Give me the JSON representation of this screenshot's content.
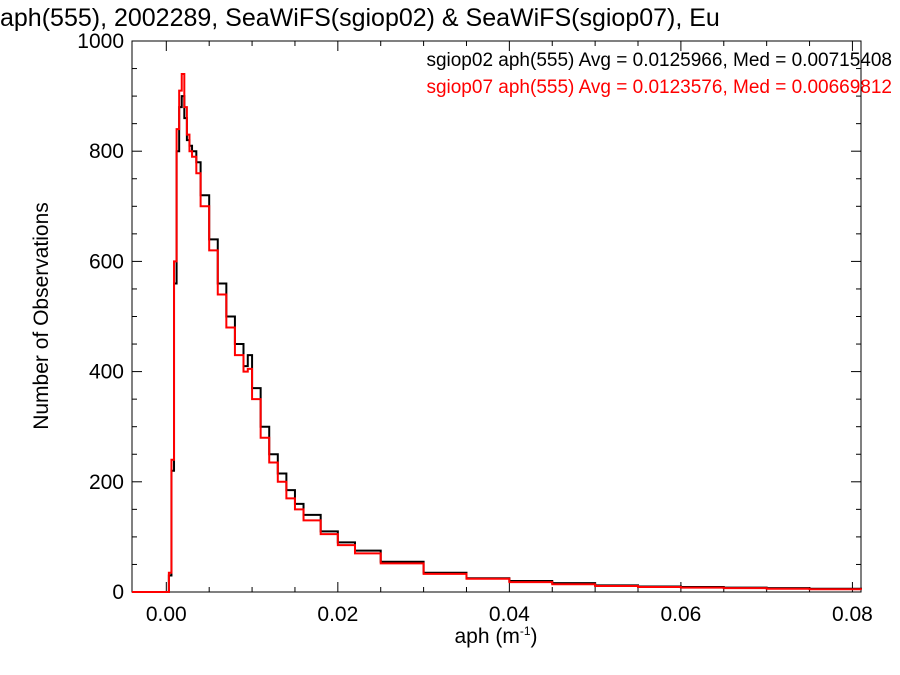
{
  "chart_data": {
    "type": "histogram",
    "title": "aph(555), 2002289, SeaWiFS(sgiop02) & SeaWiFS(sgiop07), Eu",
    "xlabel": "aph (m",
    "xlabel_exponent": "-1",
    "xlabel_close": ")",
    "ylabel": "Number of Observations",
    "xlim": [
      -0.004,
      0.081
    ],
    "ylim": [
      0,
      1000
    ],
    "x_ticks": [
      0.0,
      0.02,
      0.04,
      0.06,
      0.08
    ],
    "x_tick_labels": [
      "0.00",
      "0.02",
      "0.04",
      "0.06",
      "0.08"
    ],
    "y_ticks": [
      0,
      200,
      400,
      600,
      800,
      1000
    ],
    "y_tick_labels": [
      "0",
      "200",
      "400",
      "600",
      "800",
      "1000"
    ],
    "annotations": [
      {
        "text": "sgiop02 aph(555) Avg = 0.0125966, Med = 0.00715408",
        "color": "#000000"
      },
      {
        "text": "sgiop07 aph(555) Avg = 0.0123576, Med = 0.00669812",
        "color": "#ff0000"
      }
    ],
    "series": [
      {
        "name": "sgiop02",
        "color": "#000000",
        "x": [
          -0.004,
          0.0,
          0.0003,
          0.0006,
          0.0009,
          0.0012,
          0.0015,
          0.0018,
          0.0021,
          0.0024,
          0.0027,
          0.003,
          0.0035,
          0.004,
          0.005,
          0.006,
          0.007,
          0.008,
          0.009,
          0.0095,
          0.01,
          0.011,
          0.012,
          0.013,
          0.014,
          0.015,
          0.016,
          0.018,
          0.02,
          0.022,
          0.025,
          0.03,
          0.035,
          0.04,
          0.045,
          0.05,
          0.055,
          0.06,
          0.065,
          0.07,
          0.075,
          0.081
        ],
        "y": [
          0,
          0,
          30,
          220,
          560,
          800,
          880,
          900,
          860,
          820,
          810,
          800,
          780,
          720,
          640,
          560,
          500,
          450,
          410,
          430,
          370,
          300,
          250,
          215,
          185,
          160,
          140,
          110,
          90,
          75,
          55,
          35,
          25,
          20,
          16,
          12,
          10,
          9,
          8,
          7,
          6,
          5
        ]
      },
      {
        "name": "sgiop07",
        "color": "#ff0000",
        "x": [
          -0.004,
          0.0,
          0.0003,
          0.0006,
          0.0009,
          0.0012,
          0.0015,
          0.0018,
          0.0021,
          0.0024,
          0.0027,
          0.003,
          0.0035,
          0.004,
          0.005,
          0.006,
          0.007,
          0.008,
          0.009,
          0.0095,
          0.01,
          0.011,
          0.012,
          0.013,
          0.014,
          0.015,
          0.016,
          0.018,
          0.02,
          0.022,
          0.025,
          0.03,
          0.035,
          0.04,
          0.045,
          0.05,
          0.055,
          0.06,
          0.065,
          0.07,
          0.075,
          0.081
        ],
        "y": [
          0,
          0,
          35,
          240,
          600,
          840,
          910,
          940,
          880,
          830,
          800,
          790,
          760,
          700,
          620,
          540,
          480,
          430,
          400,
          405,
          350,
          280,
          235,
          200,
          170,
          150,
          130,
          105,
          85,
          70,
          52,
          33,
          24,
          18,
          14,
          11,
          9,
          8,
          7,
          6,
          5,
          4
        ]
      }
    ]
  }
}
